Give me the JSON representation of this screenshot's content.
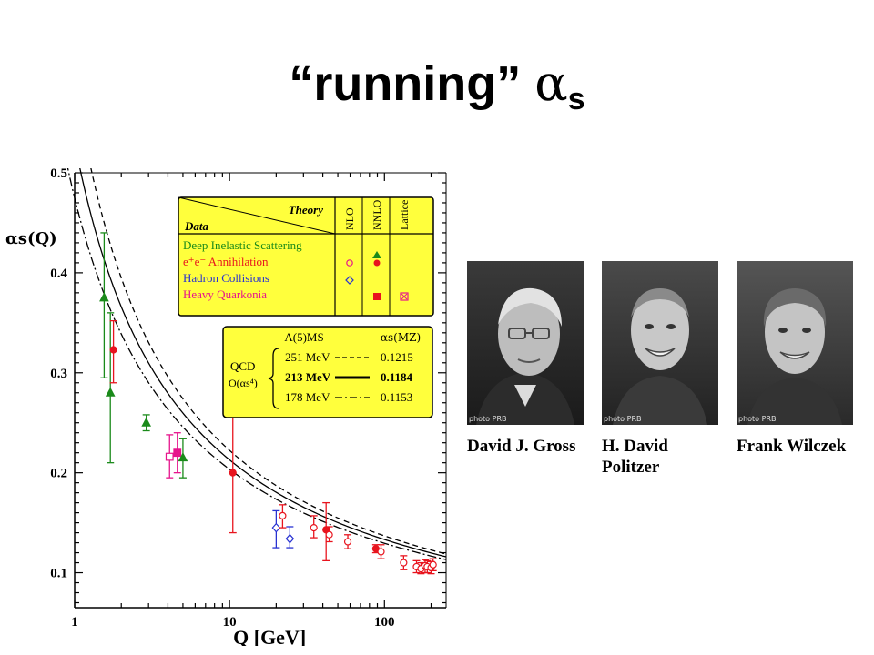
{
  "slide": {
    "title_main": "“running”",
    "title_alpha": "α",
    "title_sub": "s"
  },
  "chart_data": {
    "type": "scatter",
    "xscale": "log",
    "xlim": [
      1,
      250
    ],
    "ylim": [
      0.065,
      0.5
    ],
    "xlabel": "Q [GeV]",
    "ylabel": "αs(Q)",
    "xticks": [
      1,
      10,
      100
    ],
    "yticks": [
      0.1,
      0.2,
      0.3,
      0.4,
      0.5
    ],
    "legend_table": {
      "header_theory": "Theory",
      "header_data": "Data",
      "columns": [
        "NLO",
        "NNLO",
        "Lattice"
      ],
      "rows": [
        {
          "label": "Deep Inelastic Scattering",
          "color": "#1a8a1a"
        },
        {
          "label": "e⁺e⁻ Annihilation",
          "color": "#e8141e"
        },
        {
          "label": "Hadron Collisions",
          "color": "#2832d2"
        },
        {
          "label": "Heavy Quarkonia",
          "color": "#e6148c"
        }
      ]
    },
    "qcd_box": {
      "header_lambda": "Λ(5)MS",
      "header_alpha": "αs(MZ)",
      "label_qcd": "QCD",
      "label_order": "O(αs⁴)",
      "rows": [
        {
          "lambda": "251 MeV",
          "alpha": "0.1215",
          "style": "dashed",
          "bold": false
        },
        {
          "lambda": "213 MeV",
          "alpha": "0.1184",
          "style": "solid",
          "bold": true
        },
        {
          "lambda": "178 MeV",
          "alpha": "0.1153",
          "style": "dashdot",
          "bold": false
        }
      ]
    },
    "curves": [
      {
        "lambda_gev": 0.251,
        "style": "dashed"
      },
      {
        "lambda_gev": 0.213,
        "style": "solid"
      },
      {
        "lambda_gev": 0.178,
        "style": "dashdot"
      }
    ],
    "points": [
      {
        "x": 1.55,
        "y": 0.375,
        "lo": 0.295,
        "hi": 0.44,
        "cat": "dis",
        "marker": "triangle",
        "filled": true
      },
      {
        "x": 1.7,
        "y": 0.28,
        "lo": 0.21,
        "hi": 0.36,
        "cat": "dis",
        "marker": "triangle",
        "filled": true
      },
      {
        "x": 1.78,
        "y": 0.323,
        "lo": 0.29,
        "hi": 0.352,
        "cat": "ee",
        "marker": "circle",
        "filled": true
      },
      {
        "x": 2.9,
        "y": 0.25,
        "lo": 0.242,
        "hi": 0.258,
        "cat": "dis",
        "marker": "triangle",
        "filled": true
      },
      {
        "x": 4.1,
        "y": 0.216,
        "lo": 0.195,
        "hi": 0.238,
        "cat": "hq",
        "marker": "square",
        "filled": false
      },
      {
        "x": 4.6,
        "y": 0.22,
        "lo": 0.2,
        "hi": 0.24,
        "cat": "hq",
        "marker": "square",
        "filled": true
      },
      {
        "x": 5.0,
        "y": 0.215,
        "lo": 0.195,
        "hi": 0.234,
        "cat": "dis",
        "marker": "triangle",
        "filled": true
      },
      {
        "x": 10.5,
        "y": 0.2,
        "lo": 0.14,
        "hi": 0.26,
        "cat": "ee",
        "marker": "circle",
        "filled": true
      },
      {
        "x": 20,
        "y": 0.145,
        "lo": 0.125,
        "hi": 0.162,
        "cat": "hadron",
        "marker": "diamond",
        "filled": false
      },
      {
        "x": 22,
        "y": 0.157,
        "lo": 0.145,
        "hi": 0.168,
        "cat": "ee",
        "marker": "circle",
        "filled": false
      },
      {
        "x": 24.5,
        "y": 0.134,
        "lo": 0.125,
        "hi": 0.146,
        "cat": "hadron",
        "marker": "diamond",
        "filled": false
      },
      {
        "x": 35,
        "y": 0.145,
        "lo": 0.135,
        "hi": 0.157,
        "cat": "ee",
        "marker": "circle",
        "filled": false
      },
      {
        "x": 42,
        "y": 0.143,
        "lo": 0.112,
        "hi": 0.17,
        "cat": "ee",
        "marker": "circle",
        "filled": true
      },
      {
        "x": 44,
        "y": 0.138,
        "lo": 0.131,
        "hi": 0.146,
        "cat": "ee",
        "marker": "circle",
        "filled": false
      },
      {
        "x": 58,
        "y": 0.131,
        "lo": 0.124,
        "hi": 0.138,
        "cat": "ee",
        "marker": "circle",
        "filled": false
      },
      {
        "x": 88,
        "y": 0.124,
        "lo": 0.12,
        "hi": 0.128,
        "cat": "ee",
        "marker": "circle",
        "filled": true
      },
      {
        "x": 95,
        "y": 0.121,
        "lo": 0.114,
        "hi": 0.128,
        "cat": "ee",
        "marker": "circle",
        "filled": false
      },
      {
        "x": 133,
        "y": 0.11,
        "lo": 0.103,
        "hi": 0.117,
        "cat": "ee",
        "marker": "circle",
        "filled": false
      },
      {
        "x": 161,
        "y": 0.106,
        "lo": 0.1,
        "hi": 0.112,
        "cat": "ee",
        "marker": "circle",
        "filled": false
      },
      {
        "x": 172,
        "y": 0.104,
        "lo": 0.099,
        "hi": 0.11,
        "cat": "ee",
        "marker": "circle",
        "filled": false
      },
      {
        "x": 183,
        "y": 0.107,
        "lo": 0.1,
        "hi": 0.113,
        "cat": "ee",
        "marker": "circle",
        "filled": false
      },
      {
        "x": 189,
        "y": 0.106,
        "lo": 0.1,
        "hi": 0.112,
        "cat": "ee",
        "marker": "circle",
        "filled": false
      },
      {
        "x": 200,
        "y": 0.105,
        "lo": 0.099,
        "hi": 0.111,
        "cat": "ee",
        "marker": "circle",
        "filled": false
      },
      {
        "x": 206,
        "y": 0.108,
        "lo": 0.102,
        "hi": 0.114,
        "cat": "ee",
        "marker": "circle",
        "filled": false
      }
    ]
  },
  "photos": [
    {
      "caption_line1": "David J. Gross",
      "caption_line2": "",
      "credit": "photo PRB"
    },
    {
      "caption_line1": "H. David",
      "caption_line2": "Politzer",
      "credit": "photo PRB"
    },
    {
      "caption_line1": "Frank Wilczek",
      "caption_line2": "",
      "credit": "photo PRB"
    }
  ],
  "colors": {
    "dis": "#1a8a1a",
    "ee": "#e8141e",
    "hadron": "#2832d2",
    "hq": "#e6148c",
    "box": "#ffff3c"
  }
}
